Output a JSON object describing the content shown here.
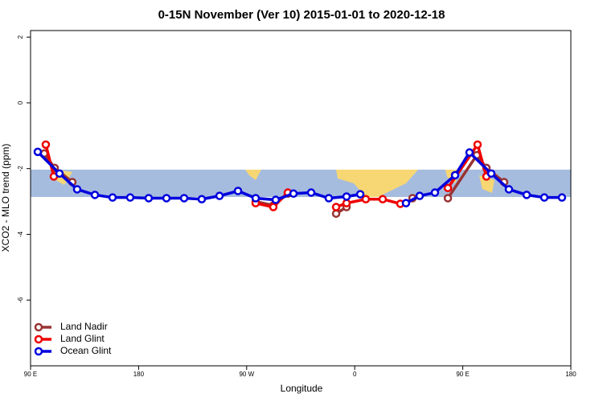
{
  "chart_data": {
    "type": "line",
    "title": "0-15N November (Ver 10)   2015-01-01 to 2020-12-18",
    "x_label": "Longitude",
    "y_label": "XCO2 - MLO trend (ppm)",
    "xlim": [
      90,
      540
    ],
    "ylim": [
      -8,
      2.2
    ],
    "xticks": [
      {
        "value": 90,
        "label": "90 E"
      },
      {
        "value": 180,
        "label": "180"
      },
      {
        "value": 270,
        "label": "90 W"
      },
      {
        "value": 360,
        "label": "0"
      },
      {
        "value": 450,
        "label": "90 E"
      },
      {
        "value": 540,
        "label": "180"
      }
    ],
    "yticks": [
      2,
      0,
      -2,
      -4,
      -6
    ],
    "legend": "bottom-left",
    "series": [
      {
        "name": "Land Nadir",
        "color": "#993333",
        "x": [
          101.4,
          110.1,
          124.8,
          null,
          277.5,
          292.2,
          304.3,
          null,
          344.5,
          353.2,
          null,
          408.1,
          null,
          437.6,
          461.7,
          469.7,
          484.4
        ],
        "values": [
          -1.54,
          -1.98,
          -2.41,
          null,
          -3.0,
          -3.12,
          -2.76,
          null,
          -3.37,
          -3.17,
          null,
          -2.9,
          null,
          -2.9,
          -1.59,
          -1.98,
          -2.41
        ]
      },
      {
        "name": "Land Glint",
        "color": "#ee0000",
        "x": [
          102.7,
          109.4,
          null,
          277.5,
          292.2,
          304.3,
          null,
          344.5,
          353.2,
          369.2,
          383.3,
          398,
          null,
          437.6,
          462.3,
          469.7
        ],
        "values": [
          -1.27,
          -2.24,
          null,
          -3.05,
          -3.17,
          -2.73,
          null,
          -3.17,
          -3.05,
          -2.93,
          -2.93,
          -3.07,
          null,
          -2.59,
          -1.27,
          -2.24
        ]
      },
      {
        "name": "Ocean Glint",
        "color": "#0000dd",
        "x": [
          96,
          114.1,
          128.8,
          143.6,
          158.3,
          173,
          188.4,
          203.2,
          217.9,
          232.6,
          247.4,
          262.8,
          277.5,
          294.2,
          309,
          323.7,
          338.4,
          353.2,
          364.6,
          null,
          402.7,
          414.1,
          426.8,
          443.6,
          455.6,
          473.7,
          488.4,
          503.2,
          517.9,
          532.6
        ],
        "values": [
          -1.49,
          -2.15,
          -2.63,
          -2.8,
          -2.88,
          -2.88,
          -2.9,
          -2.9,
          -2.9,
          -2.93,
          -2.83,
          -2.68,
          -2.9,
          -2.95,
          -2.76,
          -2.73,
          -2.9,
          -2.85,
          -2.78,
          null,
          -3.05,
          -2.83,
          -2.73,
          -2.2,
          -1.51,
          -2.15,
          -2.63,
          -2.8,
          -2.88,
          -2.88
        ]
      }
    ]
  }
}
